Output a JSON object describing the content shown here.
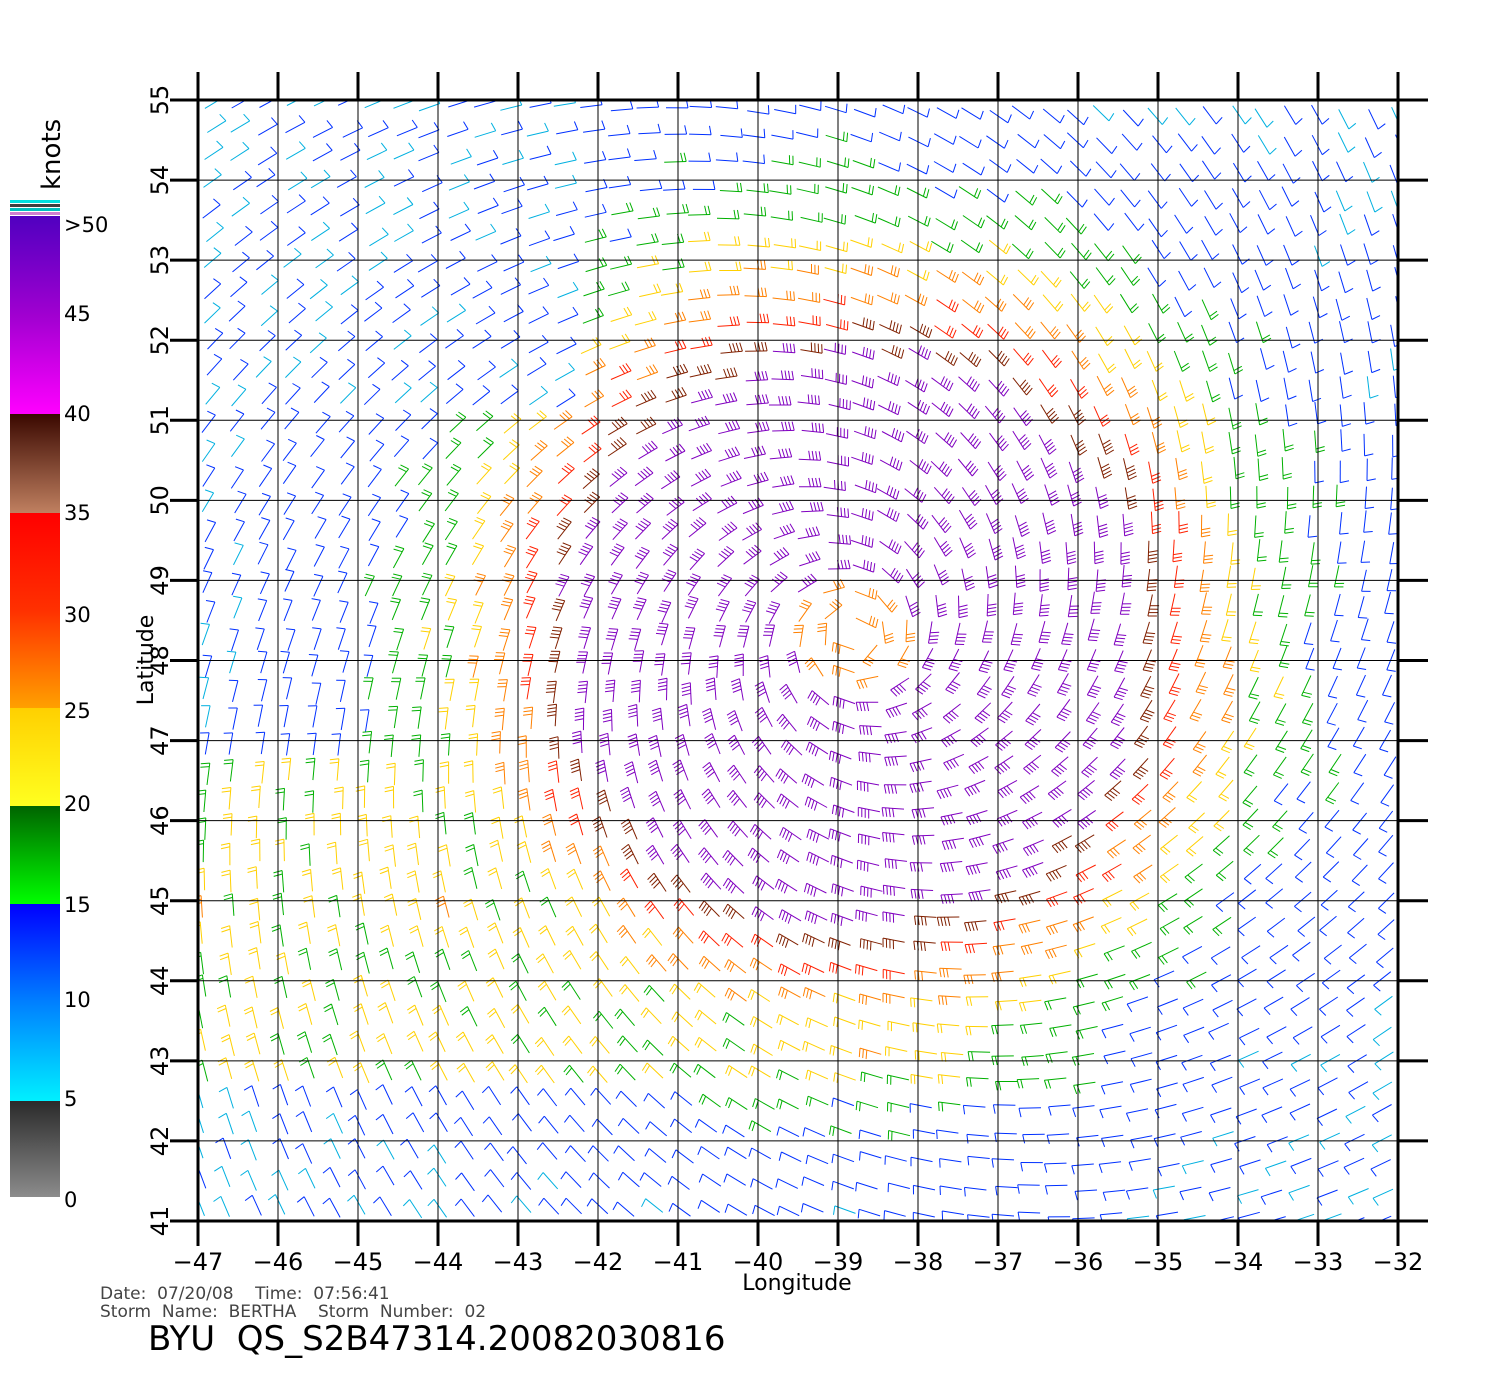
{
  "colorbar": {
    "unit_label": "knots",
    "tick_labels": [
      ">50",
      "45",
      "40",
      "35",
      "30",
      "25",
      "20",
      "15",
      "10",
      "5",
      "0"
    ],
    "segments": [
      {
        "from": 0,
        "to": 5,
        "color_top": "#2a2a2a",
        "color_bottom": "#8c8c8c"
      },
      {
        "from": 5,
        "to": 15,
        "color_top": "#0000ff",
        "color_bottom": "#00f0ff"
      },
      {
        "from": 15,
        "to": 20,
        "color_top": "#006400",
        "color_bottom": "#00ff00"
      },
      {
        "from": 20,
        "to": 25,
        "color_top": "#ffd000",
        "color_bottom": "#ffff20"
      },
      {
        "from": 25,
        "to": 30,
        "color_top": "#ff3000",
        "color_bottom": "#ffa000"
      },
      {
        "from": 30,
        "to": 35,
        "color_top": "#ff0000",
        "color_bottom": "#ff3000"
      },
      {
        "from": 35,
        "to": 40,
        "color_top": "#3a0800",
        "color_bottom": "#c08060"
      },
      {
        "from": 40,
        "to": 50,
        "color_top": "#5000c0",
        "color_bottom": "#ff00ff"
      }
    ]
  },
  "map": {
    "lon_range": [
      -47,
      -32
    ],
    "lat_range": [
      41,
      55
    ],
    "lon_ticks": [
      "−47",
      "−46",
      "−45",
      "−44",
      "−43",
      "−42",
      "−41",
      "−40",
      "−39",
      "−38",
      "−37",
      "−36",
      "−35",
      "−34",
      "−33",
      "−32"
    ],
    "lat_ticks": [
      "41",
      "42",
      "43",
      "44",
      "45",
      "46",
      "47",
      "48",
      "49",
      "50",
      "51",
      "52",
      "53",
      "54",
      "55"
    ],
    "xlabel": "Longitude",
    "ylabel": "Latitude",
    "storm_center": {
      "lon": -38.8,
      "lat": 48.3
    }
  },
  "footer": {
    "date_time": "Date:  07/20/08    Time:  07:56:41",
    "storm": "Storm  Name:  BERTHA    Storm  Number:  02",
    "product": "BYU  QS_S2B47314.20082030816"
  },
  "chart_data": {
    "type": "wind-barbs",
    "title": "BYU  QS_S2B47314.20082030816",
    "xlabel": "Longitude",
    "ylabel": "Latitude",
    "xlim": [
      -47,
      -32
    ],
    "ylim": [
      41,
      55
    ],
    "unit": "knots",
    "grid": true,
    "storm_center_approx": {
      "lon": -38.8,
      "lat": 48.3
    },
    "speed_scale_knots": [
      0,
      5,
      10,
      15,
      20,
      25,
      30,
      35,
      40,
      45,
      50
    ]
  }
}
